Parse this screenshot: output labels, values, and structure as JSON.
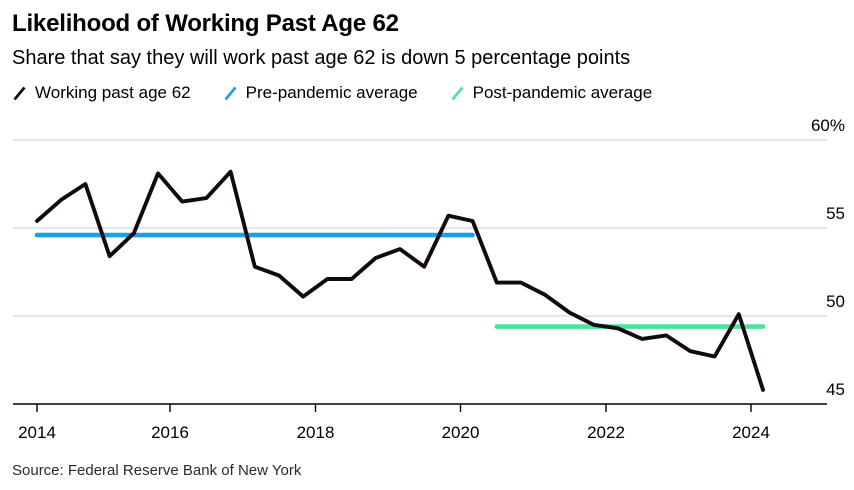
{
  "header": {
    "title": "Likelihood of Working Past Age 62",
    "subtitle": "Share that say they will work past age 62 is down 5 percentage points"
  },
  "legend": {
    "items": [
      {
        "id": "working-past-age-62",
        "label": "Working past age 62",
        "color": "#120a10"
      },
      {
        "id": "pre-pandemic-average",
        "label": "Pre-pandemic average",
        "color": "#1da0e2"
      },
      {
        "id": "post-pandemic-average",
        "label": "Post-pandemic average",
        "color": "#4ce39c"
      }
    ]
  },
  "colors": {
    "line": "#120a10",
    "pre_pandemic": "#1da0e2",
    "post_pandemic": "#4ce39c",
    "gridline": "#d8d8d8",
    "axis": "#000000",
    "text": "#000000",
    "source_text": "#2b2b2b"
  },
  "chart_data": {
    "type": "line",
    "title": "Likelihood of Working Past Age 62",
    "subtitle": "Share that say they will work past age 62 is down 5 percentage points",
    "unit": "percent",
    "grid": true,
    "legend_position": "top",
    "ylim": [
      45,
      60
    ],
    "yticks": [
      45,
      50,
      55,
      60
    ],
    "ytick_labels": [
      "45",
      "50",
      "55",
      "60%"
    ],
    "xticks": [
      "2014",
      "2016",
      "2018",
      "2020",
      "2022",
      "2024"
    ],
    "x": [
      "Mar 2014",
      "Jul 2014",
      "Nov 2014",
      "Mar 2015",
      "Jul 2015",
      "Nov 2015",
      "Mar 2016",
      "Jul 2016",
      "Nov 2016",
      "Mar 2017",
      "Jul 2017",
      "Nov 2017",
      "Mar 2018",
      "Jul 2018",
      "Nov 2018",
      "Mar 2019",
      "Jul 2019",
      "Nov 2019",
      "Mar 2020",
      "Jul 2020",
      "Nov 2020",
      "Mar 2021",
      "Jul 2021",
      "Nov 2021",
      "Mar 2022",
      "Jul 2022",
      "Nov 2022",
      "Mar 2023",
      "Jul 2023",
      "Nov 2023",
      "Mar 2024"
    ],
    "series": [
      {
        "name": "Working past age 62",
        "kind": "line",
        "values": [
          55.4,
          56.6,
          57.5,
          53.4,
          54.7,
          58.1,
          56.5,
          56.7,
          58.2,
          52.8,
          52.3,
          51.1,
          52.1,
          52.1,
          53.3,
          53.8,
          52.8,
          55.7,
          55.4,
          51.9,
          51.9,
          51.2,
          50.2,
          49.5,
          49.3,
          48.7,
          48.9,
          48.0,
          47.7,
          50.1,
          45.8
        ]
      },
      {
        "name": "Pre-pandemic average",
        "kind": "reference",
        "value": 54.6,
        "span": [
          "Mar 2014",
          "Mar 2020"
        ]
      },
      {
        "name": "Post-pandemic average",
        "kind": "reference",
        "value": 49.4,
        "span": [
          "Jul 2020",
          "Mar 2024"
        ]
      }
    ]
  },
  "source": {
    "text": "Source: Federal Reserve Bank of New York"
  }
}
